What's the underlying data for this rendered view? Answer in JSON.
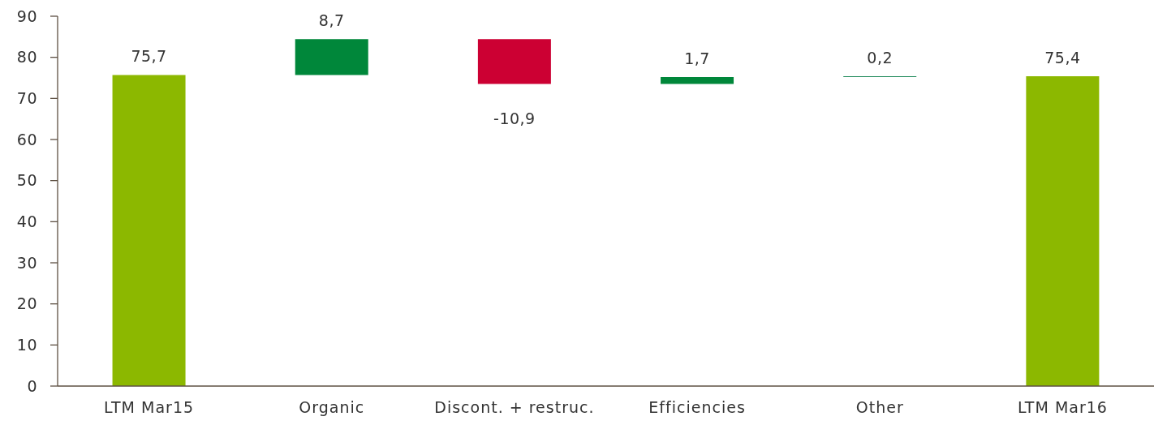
{
  "chart_data": {
    "type": "bar",
    "categories": [
      "LTM Mar15",
      "Organic",
      "Discont. + restruc.",
      "Efficiencies",
      "Other",
      "LTM Mar16"
    ],
    "values": [
      75.7,
      8.7,
      -10.9,
      1.7,
      0.2,
      75.4
    ],
    "base": [
      0,
      75.7,
      84.4,
      73.5,
      75.2,
      0
    ],
    "colors": [
      "#8cb800",
      "#00873a",
      "#cc0033",
      "#00873a",
      "#1f8a5a",
      "#8cb800"
    ],
    "value_labels": [
      "75,7",
      "8,7",
      "-10,9",
      "1,7",
      "0,2",
      "75,4"
    ],
    "ylim": [
      0,
      90
    ],
    "yticks": [
      0,
      10,
      20,
      30,
      40,
      50,
      60,
      70,
      80,
      90
    ]
  }
}
